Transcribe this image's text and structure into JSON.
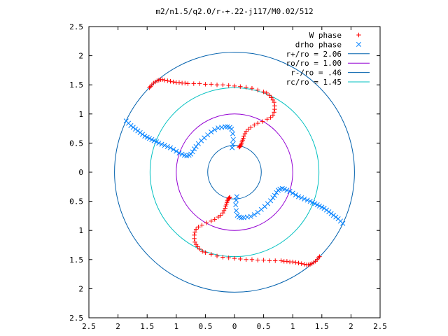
{
  "chart_data": {
    "type": "scatter",
    "title": "m2/n1.5/q2.0/r-+.22-j117/M0.02/512",
    "xlabel": "",
    "ylabel": "",
    "xlim": [
      -2.5,
      2.5
    ],
    "ylim": [
      -2.5,
      2.5
    ],
    "x_tick_values": [
      -2.5,
      -2,
      -1.5,
      -1,
      -0.5,
      0,
      0.5,
      1,
      1.5,
      2,
      2.5
    ],
    "x_tick_labels": [
      "2.5",
      "2",
      "1.5",
      "1",
      "0.5",
      "0",
      "0.5",
      "1",
      "1.5",
      "2",
      "2.5"
    ],
    "y_tick_values": [
      2.5,
      2,
      1.5,
      1,
      0.5,
      0,
      -0.5,
      -1,
      -1.5,
      -2,
      -2.5
    ],
    "y_tick_labels": [
      "2.5",
      "2",
      "1.5",
      "1",
      "0.5",
      "0",
      "0.5",
      "1",
      "1.5",
      "2",
      "2.5"
    ],
    "grid": false,
    "legend_position": "top-right",
    "series": [
      {
        "name": "W phase",
        "kind": "points",
        "marker": "plus",
        "color": "#ff0000",
        "x": [
          -1.46,
          -1.44,
          -1.42,
          -1.39,
          -1.36,
          -1.33,
          -1.3,
          -1.27,
          -1.24,
          -1.2,
          -1.15,
          -1.1,
          -1.05,
          -1.0,
          -0.95,
          -0.9,
          -0.85,
          -0.8,
          -0.7,
          -0.6,
          -0.5,
          -0.4,
          -0.3,
          -0.2,
          -0.1,
          0.0,
          0.1,
          0.2,
          0.3,
          0.4,
          0.5,
          0.55,
          0.6,
          0.63,
          0.66,
          0.68,
          0.69,
          0.69,
          0.68,
          0.66,
          0.62,
          0.56,
          0.48,
          0.4,
          0.34,
          0.28,
          0.24,
          0.2,
          0.18,
          0.16,
          0.15,
          0.14,
          0.13,
          0.12,
          0.11,
          0.1,
          0.09,
          0.08,
          1.46,
          1.44,
          1.42,
          1.39,
          1.36,
          1.33,
          1.3,
          1.27,
          1.24,
          1.2,
          1.15,
          1.1,
          1.05,
          1.0,
          0.95,
          0.9,
          0.85,
          0.8,
          0.7,
          0.6,
          0.5,
          0.4,
          0.3,
          0.2,
          0.1,
          0.0,
          -0.1,
          -0.2,
          -0.3,
          -0.4,
          -0.5,
          -0.55,
          -0.6,
          -0.63,
          -0.66,
          -0.68,
          -0.69,
          -0.69,
          -0.68,
          -0.66,
          -0.62,
          -0.56,
          -0.48,
          -0.4,
          -0.34,
          -0.28,
          -0.24,
          -0.2,
          -0.18,
          -0.16,
          -0.15,
          -0.14,
          -0.13,
          -0.12,
          -0.11,
          -0.1,
          -0.09,
          -0.08
        ],
        "y": [
          1.45,
          1.47,
          1.5,
          1.53,
          1.55,
          1.57,
          1.58,
          1.59,
          1.59,
          1.58,
          1.57,
          1.56,
          1.55,
          1.54,
          1.54,
          1.53,
          1.53,
          1.52,
          1.52,
          1.52,
          1.51,
          1.51,
          1.5,
          1.5,
          1.49,
          1.48,
          1.47,
          1.46,
          1.44,
          1.41,
          1.38,
          1.36,
          1.32,
          1.28,
          1.24,
          1.2,
          1.14,
          1.08,
          1.03,
          0.98,
          0.94,
          0.91,
          0.87,
          0.84,
          0.81,
          0.77,
          0.74,
          0.7,
          0.66,
          0.62,
          0.58,
          0.55,
          0.52,
          0.49,
          0.47,
          0.45,
          0.44,
          0.43,
          -1.45,
          -1.47,
          -1.5,
          -1.53,
          -1.55,
          -1.57,
          -1.58,
          -1.59,
          -1.59,
          -1.58,
          -1.57,
          -1.56,
          -1.55,
          -1.54,
          -1.54,
          -1.53,
          -1.53,
          -1.52,
          -1.52,
          -1.52,
          -1.51,
          -1.51,
          -1.5,
          -1.5,
          -1.49,
          -1.48,
          -1.47,
          -1.46,
          -1.44,
          -1.41,
          -1.38,
          -1.36,
          -1.32,
          -1.28,
          -1.24,
          -1.2,
          -1.14,
          -1.08,
          -1.03,
          -0.98,
          -0.94,
          -0.91,
          -0.87,
          -0.84,
          -0.81,
          -0.77,
          -0.74,
          -0.7,
          -0.66,
          -0.62,
          -0.58,
          -0.55,
          -0.52,
          -0.49,
          -0.47,
          -0.45,
          -0.44,
          -0.43
        ]
      },
      {
        "name": "drho phase",
        "kind": "points",
        "marker": "cross",
        "color": "#0080ff",
        "x": [
          -1.86,
          -1.82,
          -1.78,
          -1.74,
          -1.7,
          -1.66,
          -1.62,
          -1.58,
          -1.54,
          -1.5,
          -1.46,
          -1.42,
          -1.38,
          -1.34,
          -1.3,
          -1.25,
          -1.2,
          -1.15,
          -1.1,
          -1.05,
          -1.0,
          -0.95,
          -0.9,
          -0.86,
          -0.82,
          -0.78,
          -0.75,
          -0.72,
          -0.69,
          -0.66,
          -0.62,
          -0.57,
          -0.52,
          -0.46,
          -0.4,
          -0.34,
          -0.28,
          -0.22,
          -0.16,
          -0.12,
          -0.08,
          -0.05,
          -0.03,
          -0.02,
          -0.03,
          -0.04,
          1.86,
          1.82,
          1.78,
          1.74,
          1.7,
          1.66,
          1.62,
          1.58,
          1.54,
          1.5,
          1.46,
          1.42,
          1.38,
          1.34,
          1.3,
          1.25,
          1.2,
          1.15,
          1.1,
          1.05,
          1.0,
          0.95,
          0.9,
          0.86,
          0.82,
          0.78,
          0.75,
          0.72,
          0.69,
          0.66,
          0.62,
          0.57,
          0.52,
          0.46,
          0.4,
          0.34,
          0.28,
          0.22,
          0.16,
          0.12,
          0.08,
          0.05,
          0.03,
          0.02,
          0.03,
          0.04
        ],
        "y": [
          0.88,
          0.84,
          0.8,
          0.77,
          0.74,
          0.71,
          0.68,
          0.65,
          0.62,
          0.6,
          0.58,
          0.56,
          0.54,
          0.52,
          0.5,
          0.48,
          0.46,
          0.44,
          0.42,
          0.39,
          0.36,
          0.33,
          0.31,
          0.29,
          0.28,
          0.29,
          0.31,
          0.35,
          0.4,
          0.44,
          0.49,
          0.54,
          0.59,
          0.64,
          0.69,
          0.73,
          0.76,
          0.77,
          0.78,
          0.78,
          0.77,
          0.74,
          0.66,
          0.56,
          0.48,
          0.42,
          -0.88,
          -0.84,
          -0.8,
          -0.77,
          -0.74,
          -0.71,
          -0.68,
          -0.65,
          -0.62,
          -0.6,
          -0.58,
          -0.56,
          -0.54,
          -0.52,
          -0.5,
          -0.48,
          -0.46,
          -0.44,
          -0.42,
          -0.39,
          -0.36,
          -0.33,
          -0.31,
          -0.29,
          -0.28,
          -0.29,
          -0.31,
          -0.35,
          -0.4,
          -0.44,
          -0.49,
          -0.54,
          -0.59,
          -0.64,
          -0.69,
          -0.73,
          -0.76,
          -0.77,
          -0.78,
          -0.78,
          -0.77,
          -0.74,
          -0.66,
          -0.56,
          -0.48,
          -0.42
        ]
      },
      {
        "name": "r+/ro = 2.06",
        "kind": "circle",
        "radius": 2.06,
        "color": "#0060ad"
      },
      {
        "name": "ro/ro = 1.00",
        "kind": "circle",
        "radius": 1.0,
        "color": "#9400d3"
      },
      {
        "name": "r-/ro = .46",
        "kind": "circle",
        "radius": 0.46,
        "color": "#0060ad"
      },
      {
        "name": "rc/ro = 1.45",
        "kind": "circle",
        "radius": 1.45,
        "color": "#00c0c0"
      }
    ]
  }
}
